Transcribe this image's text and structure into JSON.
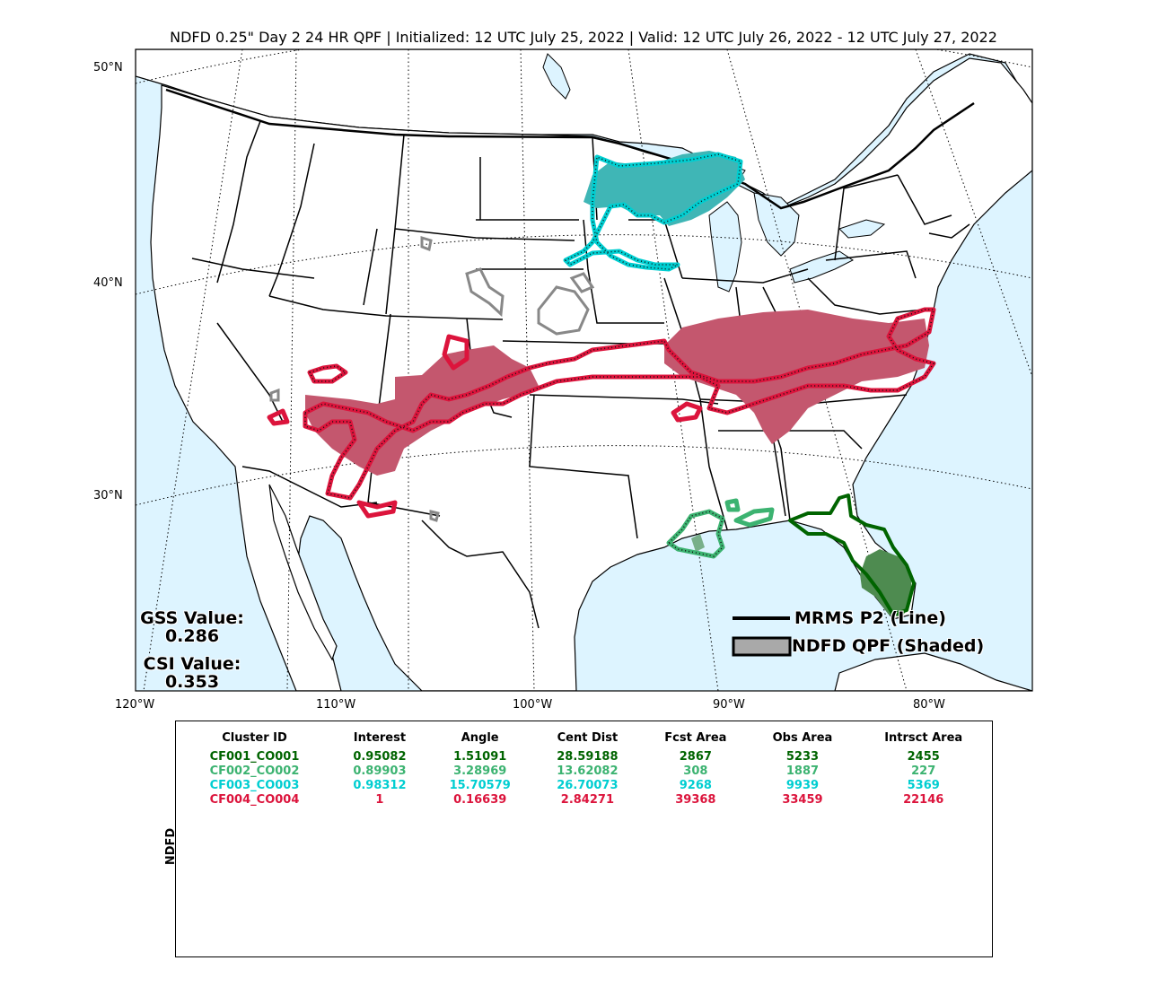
{
  "title": "NDFD 0.25\" Day 2 24 HR QPF | Initialized: 12 UTC July 25, 2022 | Valid: 12 UTC July 26, 2022 - 12 UTC July 27, 2022",
  "map": {
    "lat_labels": [
      "50°N",
      "40°N",
      "30°N"
    ],
    "lon_labels": [
      "120°W",
      "110°W",
      "100°W",
      "90°W",
      "80°W"
    ],
    "colors": {
      "ocean": "#ddf4ff",
      "land": "#ffffff",
      "borders": "#000000"
    }
  },
  "legend": {
    "line_label": "MRMS P2 (Line)",
    "shaded_label": "NDFD QPF (Shaded)"
  },
  "scores": {
    "gss_label": "GSS Value:",
    "gss_value": "0.286",
    "csi_label": "CSI Value:",
    "csi_value": "0.353"
  },
  "table": {
    "side_label": "NDFD",
    "headers": [
      "Cluster ID",
      "Interest",
      "Angle",
      "Cent Dist",
      "Fcst Area",
      "Obs Area",
      "Intrsct Area"
    ],
    "rows": [
      {
        "color": "#006400",
        "cells": [
          "CF001_CO001",
          "0.95082",
          "1.51091",
          "28.59188",
          "2867",
          "5233",
          "2455"
        ]
      },
      {
        "color": "#3cb371",
        "cells": [
          "CF002_CO002",
          "0.89903",
          "3.28969",
          "13.62082",
          "308",
          "1887",
          "227"
        ]
      },
      {
        "color": "#00ced1",
        "cells": [
          "CF003_CO003",
          "0.98312",
          "15.70579",
          "26.70073",
          "9268",
          "9939",
          "5369"
        ]
      },
      {
        "color": "#dc143c",
        "cells": [
          "CF004_CO004",
          "1",
          "0.16639",
          "2.84271",
          "39368",
          "33459",
          "22146"
        ]
      }
    ]
  },
  "clusters": [
    {
      "id": "CF001_CO001",
      "color": "#006400",
      "fill": "#4e8b50"
    },
    {
      "id": "CF002_CO002",
      "color": "#3cb371",
      "fill": "#78b08a"
    },
    {
      "id": "CF003_CO003",
      "color": "#00ced1",
      "fill": "#3fb6b6"
    },
    {
      "id": "CF004_CO004",
      "color": "#dc143c",
      "fill": "#c4576e"
    }
  ]
}
